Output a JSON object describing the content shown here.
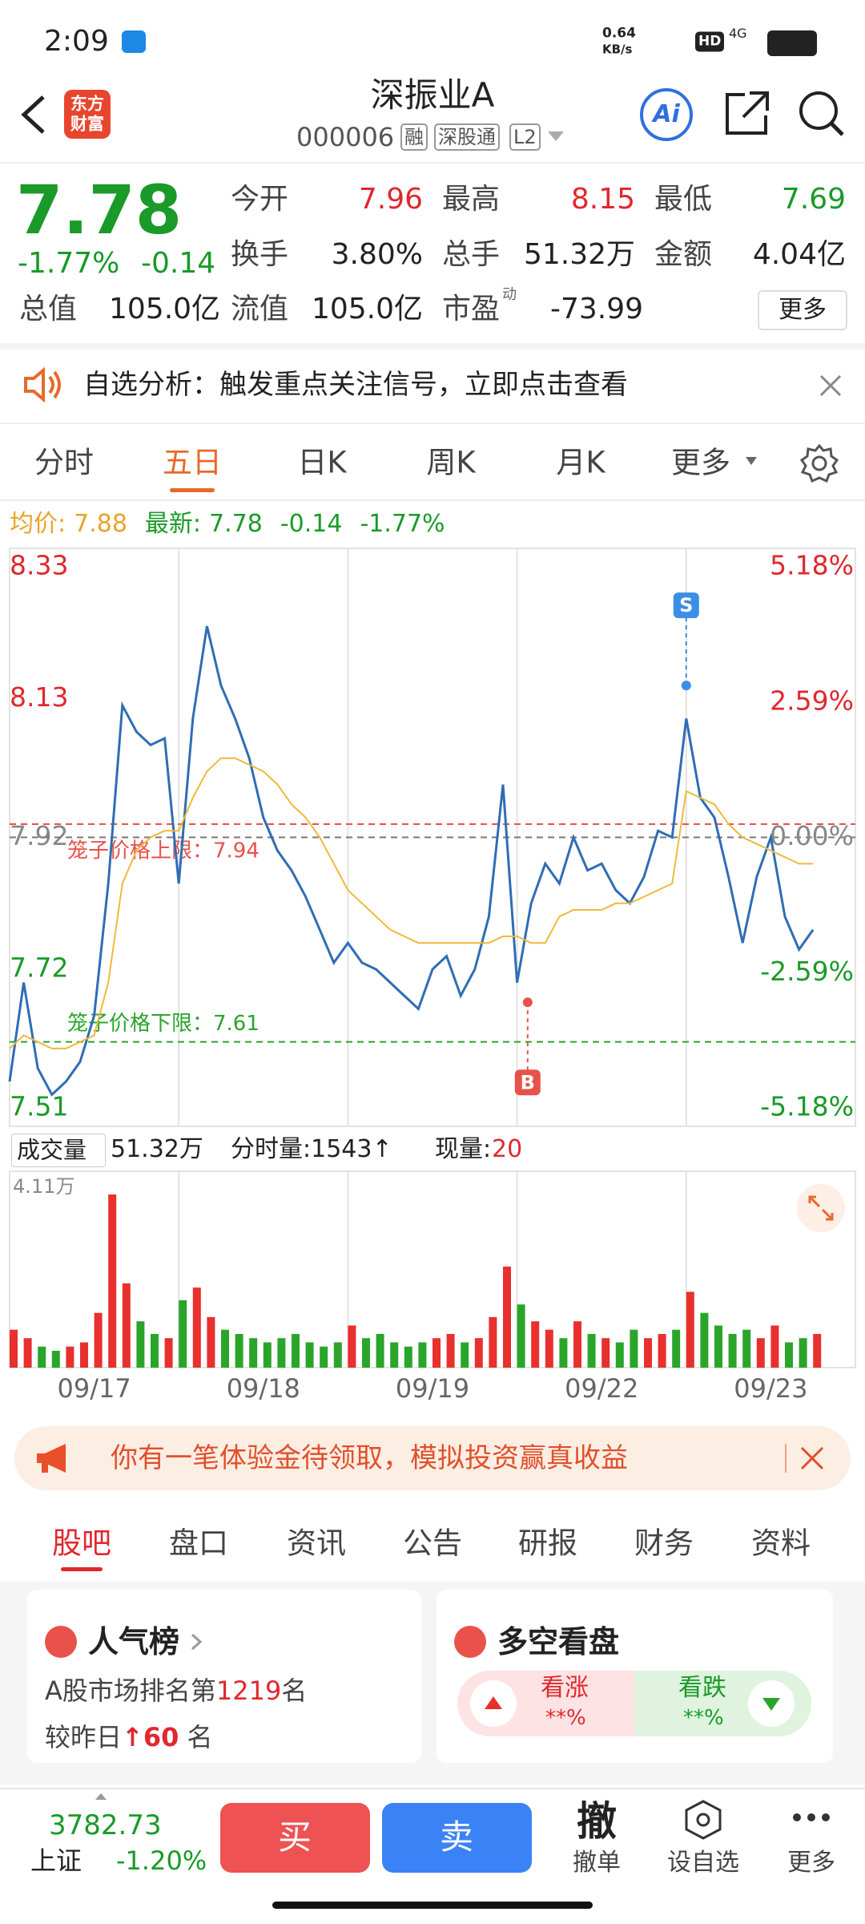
{
  "status": {
    "time": "2:09",
    "net_speed": "0.64",
    "net_unit": "KB/s",
    "hd": "HD",
    "signal": "4G"
  },
  "header": {
    "logo": [
      "东方",
      "财富"
    ],
    "title": "深振业A",
    "code": "000006",
    "tags": [
      "融",
      "深股通",
      "L2"
    ],
    "ai": "Ai"
  },
  "quote": {
    "price": "7.78",
    "change_pct": "-1.77%",
    "change": "-0.14",
    "fields": [
      [
        "今开",
        "7.96"
      ],
      [
        "最高",
        "8.15"
      ],
      [
        "最低",
        "7.69"
      ],
      [
        "换手",
        "3.80%"
      ],
      [
        "总手",
        "51.32万"
      ],
      [
        "金额",
        "4.04亿"
      ],
      [
        "总值",
        "105.0亿"
      ],
      [
        "流值",
        "105.0亿"
      ],
      [
        "市盈",
        "-73.99"
      ]
    ],
    "pe_sup": "动",
    "more": "更多"
  },
  "notice": "自选分析：触发重点关注信号，立即点击查看",
  "tabs": {
    "items": [
      "分时",
      "五日",
      "日K",
      "周K",
      "月K",
      "更多"
    ]
  },
  "info": {
    "avg_label": "均价:",
    "avg": "7.88",
    "last_label": "最新:",
    "last": "7.78",
    "change": "-0.14",
    "change_pct": "-1.77%"
  },
  "chart_data": {
    "type": "line",
    "x": [
      0,
      20,
      40,
      60,
      80,
      100,
      120,
      140,
      160,
      180,
      200,
      220,
      240,
      260,
      280,
      300,
      320,
      340,
      360,
      380,
      400,
      420,
      440,
      460,
      480,
      500,
      520,
      540,
      560,
      580,
      600,
      620,
      640,
      660,
      680,
      700,
      720,
      740,
      760,
      780,
      800,
      820,
      840,
      860,
      880,
      900,
      920,
      940,
      960,
      980,
      1000,
      1020,
      1040,
      1060,
      1080,
      1100,
      1120,
      1140
    ],
    "xlim": [
      0,
      1200
    ],
    "xticks": [
      0,
      240,
      480,
      720,
      960,
      1200
    ],
    "categories": [
      "09/17",
      "09/18",
      "09/19",
      "09/22",
      "09/23"
    ],
    "series": [
      {
        "color": "#2f6db5",
        "values": [
          7.55,
          7.7,
          7.57,
          7.53,
          7.55,
          7.58,
          7.65,
          7.85,
          8.12,
          8.08,
          8.06,
          8.07,
          7.85,
          8.1,
          8.24,
          8.15,
          8.1,
          8.04,
          7.95,
          7.9,
          7.87,
          7.83,
          7.78,
          7.73,
          7.76,
          7.73,
          7.72,
          7.7,
          7.68,
          7.66,
          7.72,
          7.74,
          7.68,
          7.72,
          7.8,
          8.0,
          7.7,
          7.82,
          7.88,
          7.85,
          7.92,
          7.87,
          7.88,
          7.84,
          7.82,
          7.86,
          7.93,
          7.92,
          8.1,
          7.98,
          7.95,
          7.86,
          7.76,
          7.86,
          7.92,
          7.8,
          7.75,
          7.78
        ]
      },
      {
        "color": "#f0b93a",
        "values": [
          7.6,
          7.62,
          7.61,
          7.6,
          7.6,
          7.61,
          7.62,
          7.7,
          7.85,
          7.9,
          7.92,
          7.93,
          7.93,
          7.98,
          8.02,
          8.04,
          8.04,
          8.03,
          8.02,
          8.0,
          7.97,
          7.95,
          7.92,
          7.88,
          7.84,
          7.82,
          7.8,
          7.78,
          7.77,
          7.76,
          7.76,
          7.76,
          7.76,
          7.76,
          7.76,
          7.77,
          7.77,
          7.76,
          7.76,
          7.8,
          7.81,
          7.81,
          7.81,
          7.82,
          7.82,
          7.83,
          7.84,
          7.85,
          7.99,
          7.98,
          7.97,
          7.94,
          7.92,
          7.91,
          7.9,
          7.89,
          7.88,
          7.88
        ]
      }
    ],
    "ylim": [
      7.51,
      8.33
    ],
    "yticks": [
      8.33,
      8.13,
      7.92,
      7.72,
      7.51
    ],
    "y2lim": [
      -5.18,
      5.18
    ],
    "y2ticks": [
      {
        "value": 5.18,
        "label": "5.18%"
      },
      {
        "value": 2.59,
        "label": "2.59%"
      },
      {
        "value": 0,
        "label": "0.00%"
      },
      {
        "value": -2.59,
        "label": "-2.59%"
      },
      {
        "value": -5.18,
        "label": "-5.18%"
      }
    ],
    "cage_upper": {
      "value": 7.94,
      "label": "笼子价格上限：7.94"
    },
    "cage_lower": {
      "value": 7.61,
      "label": "笼子价格下限：7.61"
    },
    "markers": [
      {
        "label": "S",
        "x": 960,
        "value": 8.15,
        "color": "#3a8ee6"
      },
      {
        "label": "B",
        "x": 735,
        "value": 7.67,
        "color": "#e8524a"
      }
    ],
    "volume": {
      "values": [
        0.9,
        0.7,
        0.5,
        0.4,
        0.5,
        0.6,
        1.3,
        4.11,
        2.0,
        1.1,
        0.8,
        0.7,
        1.6,
        1.9,
        1.2,
        0.9,
        0.8,
        0.7,
        0.6,
        0.7,
        0.8,
        0.6,
        0.5,
        0.6,
        1.0,
        0.7,
        0.8,
        0.6,
        0.5,
        0.6,
        0.7,
        0.8,
        0.6,
        0.7,
        1.2,
        2.4,
        1.5,
        1.1,
        0.9,
        0.7,
        1.1,
        0.8,
        0.7,
        0.6,
        0.9,
        0.7,
        0.8,
        0.9,
        1.8,
        1.3,
        1.0,
        0.8,
        0.9,
        0.7,
        1.0,
        0.6,
        0.7,
        0.8
      ],
      "ylim": [
        0,
        4.11
      ],
      "max_label": "4.11万",
      "up_color": "#e8302e",
      "down_color": "#2aa52a"
    }
  },
  "volume_bar": {
    "label": "成交量",
    "total": "51.32万",
    "tick_vol": "分时量:1543↑",
    "now_label": "现量:",
    "now": "20"
  },
  "promo": "你有一笔体验金待领取，模拟投资赢真收益",
  "sections": {
    "items": [
      "股吧",
      "盘口",
      "资讯",
      "公告",
      "研报",
      "财务",
      "资料"
    ]
  },
  "cards": {
    "rank": {
      "title": "人气榜",
      "line1_pre": "A股市场排名第",
      "rank": "1219",
      "line1_post": "名",
      "line2_pre": "较昨日",
      "delta": "60",
      "line2_post": "名"
    },
    "vs": {
      "title": "多空看盘",
      "up": "看涨",
      "up_val": "**%",
      "down": "看跌",
      "down_val": "**%"
    }
  },
  "bottom": {
    "index": "3782.73",
    "index_name": "上证",
    "index_change": "-1.20%",
    "buy": "买",
    "sell": "卖",
    "cancel_icon": "撤",
    "cancel": "撤单",
    "watch": "设自选",
    "more": "更多"
  }
}
